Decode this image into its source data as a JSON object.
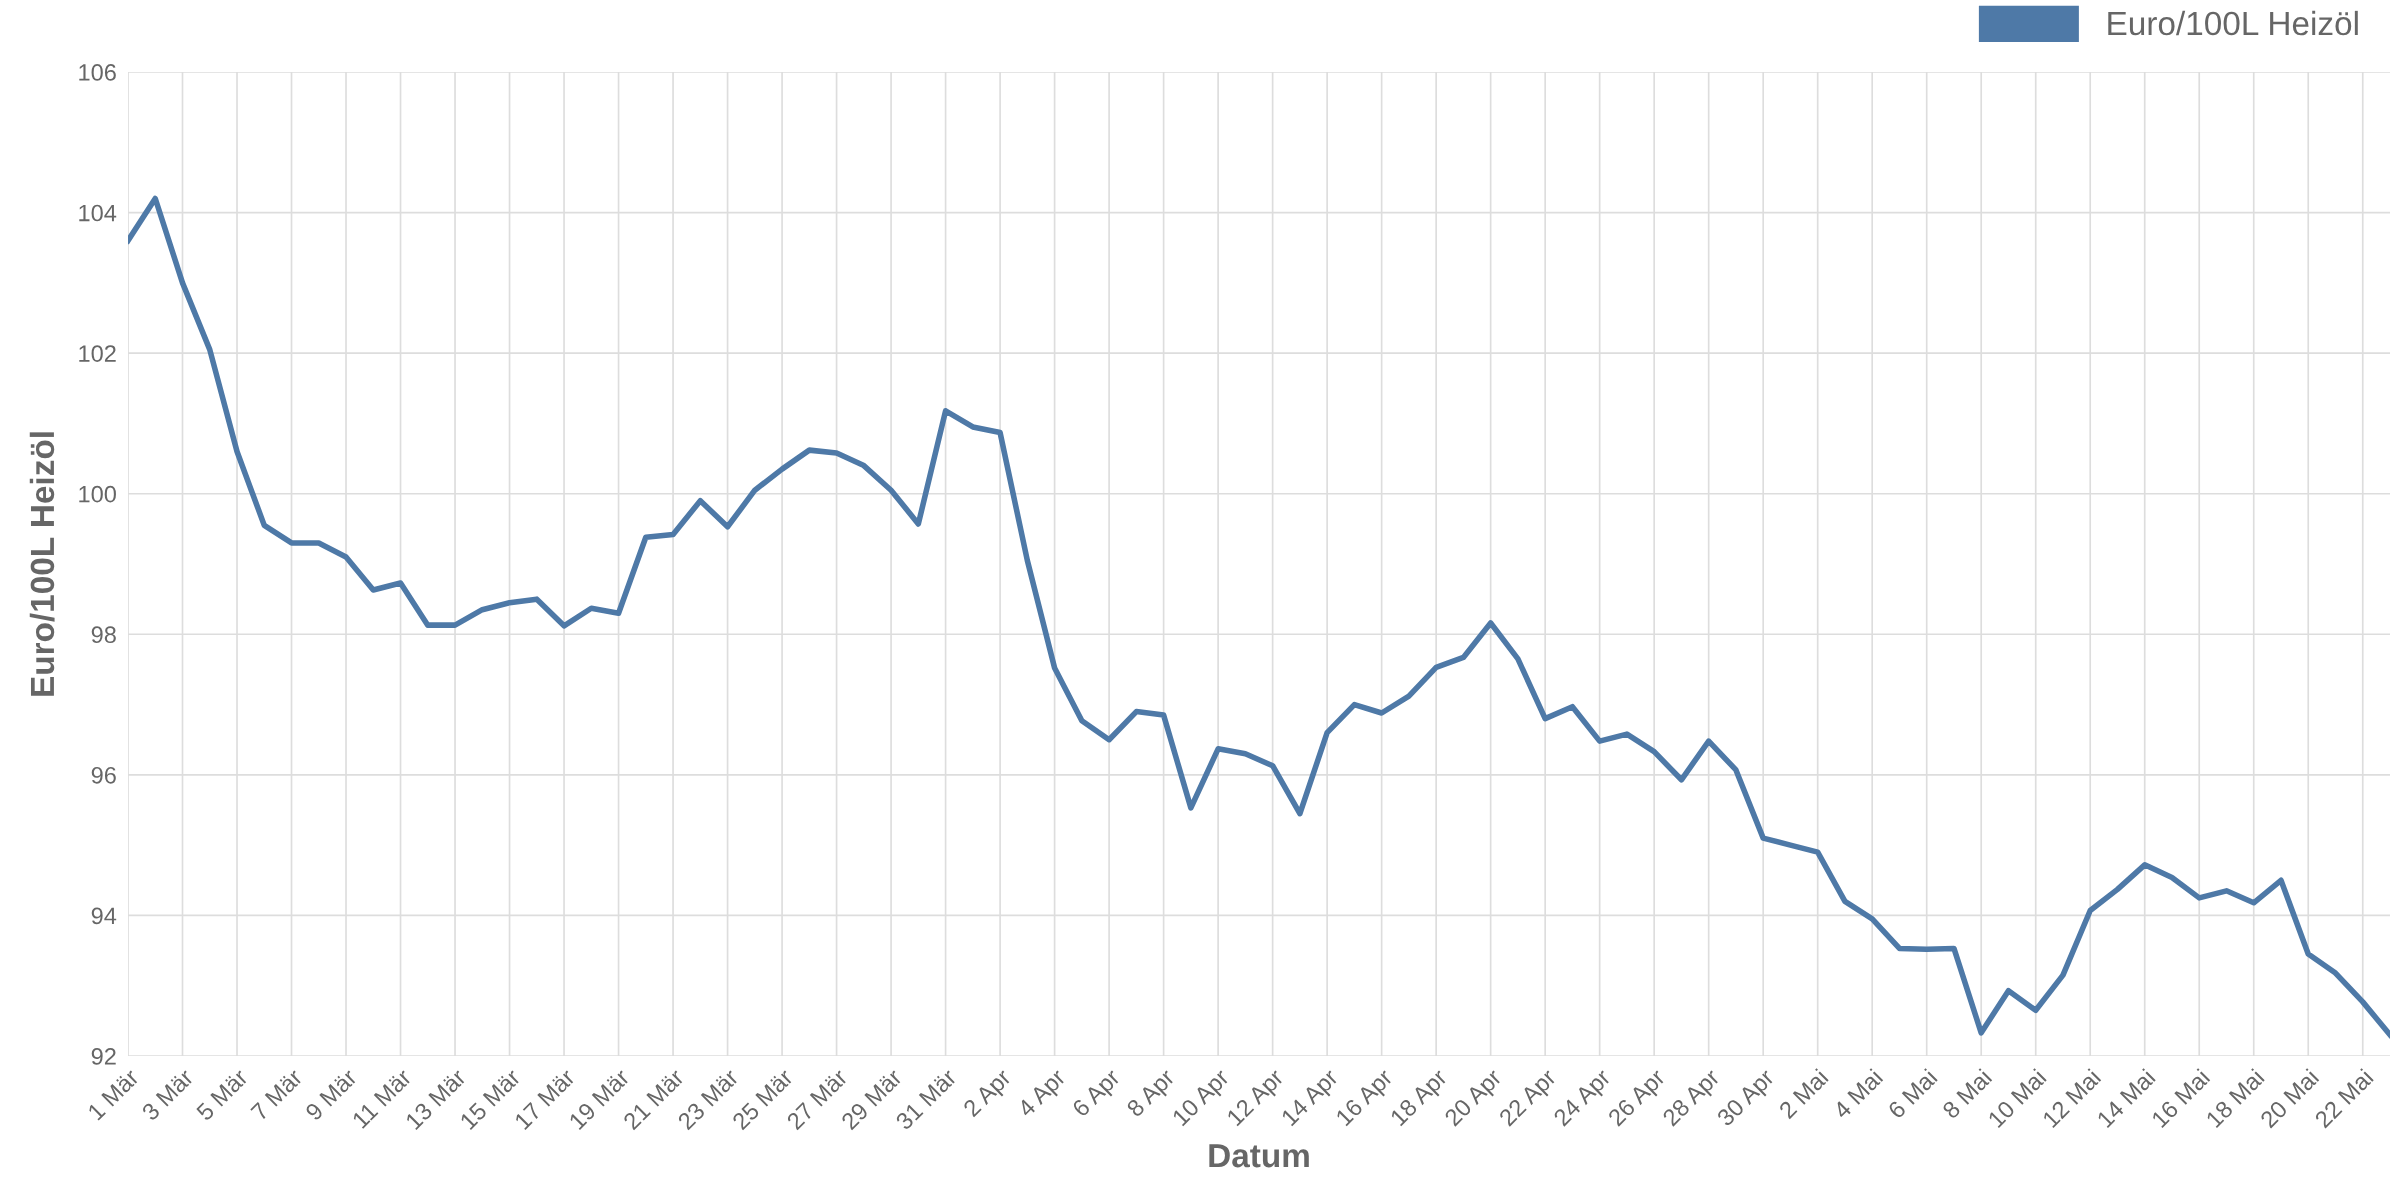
{
  "chart_data": {
    "type": "line",
    "xlabel": "Datum",
    "ylabel": "Euro/100L Heizöl",
    "categories": [
      "1 Mär",
      null,
      "3 Mär",
      null,
      "5 Mär",
      null,
      "7 Mär",
      null,
      "9 Mär",
      null,
      "11 Mär",
      null,
      "13 Mär",
      null,
      "15 Mär",
      null,
      "17 Mär",
      null,
      "19 Mär",
      null,
      "21 Mär",
      null,
      "23 Mär",
      null,
      "25 Mär",
      null,
      "27 Mär",
      null,
      "29 Mär",
      null,
      "31 Mär",
      null,
      "2 Apr",
      null,
      "4 Apr",
      null,
      "6 Apr",
      null,
      "8 Apr",
      null,
      "10 Apr",
      null,
      "12 Apr",
      null,
      "14 Apr",
      null,
      "16 Apr",
      null,
      "18 Apr",
      null,
      "20 Apr",
      null,
      "22 Apr",
      null,
      "24 Apr",
      null,
      "26 Apr",
      null,
      "28 Apr",
      null,
      "30 Apr",
      null,
      "2 Mai",
      null,
      "4 Mai",
      null,
      "6 Mai",
      null,
      "8 Mai",
      null,
      "10 Mai",
      null,
      "12 Mai",
      null,
      "14 Mai",
      null,
      "16 Mai",
      null,
      "18 Mai",
      null,
      "20 Mai",
      null,
      "22 Mai",
      null
    ],
    "series": [
      {
        "name": "Euro/100L Heizöl",
        "color": "#4e79a7",
        "values": [
          103.6,
          104.2,
          103.0,
          102.05,
          100.6,
          99.55,
          99.3,
          99.3,
          99.1,
          98.63,
          98.73,
          98.13,
          98.13,
          98.35,
          98.45,
          98.5,
          98.12,
          98.37,
          98.3,
          99.38,
          99.42,
          99.9,
          99.53,
          100.05,
          100.35,
          100.62,
          100.58,
          100.4,
          100.05,
          99.57,
          101.18,
          100.95,
          100.87,
          99.05,
          97.52,
          96.77,
          96.5,
          96.9,
          96.85,
          95.53,
          96.37,
          96.3,
          96.13,
          95.45,
          96.6,
          97.0,
          96.88,
          97.12,
          97.53,
          97.67,
          98.16,
          97.65,
          96.8,
          96.97,
          96.48,
          96.58,
          96.33,
          95.93,
          96.48,
          96.07,
          95.1,
          95.0,
          94.9,
          94.2,
          93.95,
          93.53,
          93.52,
          93.53,
          92.33,
          92.93,
          92.65,
          93.15,
          94.07,
          94.37,
          94.72,
          94.54,
          94.25,
          94.35,
          94.18,
          94.5,
          93.45,
          93.18,
          92.77,
          92.3
        ]
      }
    ],
    "ylim": [
      92,
      106
    ],
    "yticks": [
      92,
      94,
      96,
      98,
      100,
      102,
      104,
      106
    ],
    "grid": true,
    "legend": "top right",
    "marker": "none",
    "line_style": "solid"
  }
}
